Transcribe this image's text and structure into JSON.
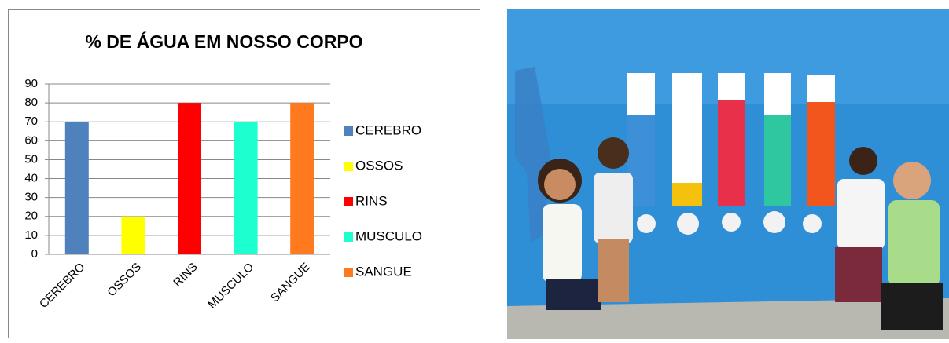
{
  "chart_data": {
    "type": "bar",
    "title": "% DE ÁGUA EM NOSSO CORPO",
    "categories": [
      "CEREBRO",
      "OSSOS",
      "RINS",
      "MUSCULO",
      "SANGUE"
    ],
    "values": [
      70,
      20,
      80,
      70,
      80
    ],
    "colors": [
      "#4f81bd",
      "#ffff00",
      "#ff0000",
      "#1dffcf",
      "#ff7a1f"
    ],
    "ylim": [
      0,
      90
    ],
    "yticks": [
      0,
      10,
      20,
      30,
      40,
      50,
      60,
      70,
      80,
      90
    ],
    "grid": true,
    "legend": "right"
  }
}
